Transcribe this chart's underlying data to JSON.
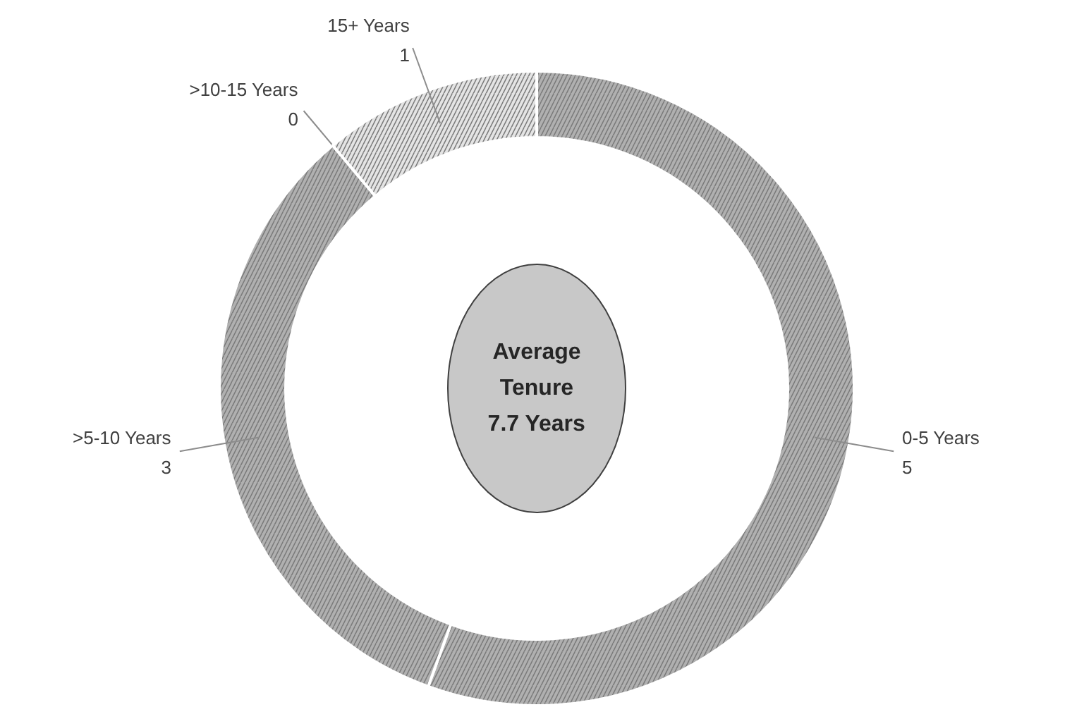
{
  "chart_data": {
    "type": "donut",
    "categories": [
      "0-5 Years",
      ">5-10 Years",
      ">10-15 Years",
      "15+ Years"
    ],
    "values": [
      5,
      3,
      0,
      1
    ],
    "colors": [
      "#b0b0b0",
      "#b0b0b0",
      "#b0b0b0",
      "#e4e4e4"
    ],
    "value_labels": [
      "5",
      "3",
      "0",
      "1"
    ],
    "annotations": [
      "Average\nTenure\n7.7 Years"
    ]
  }
}
